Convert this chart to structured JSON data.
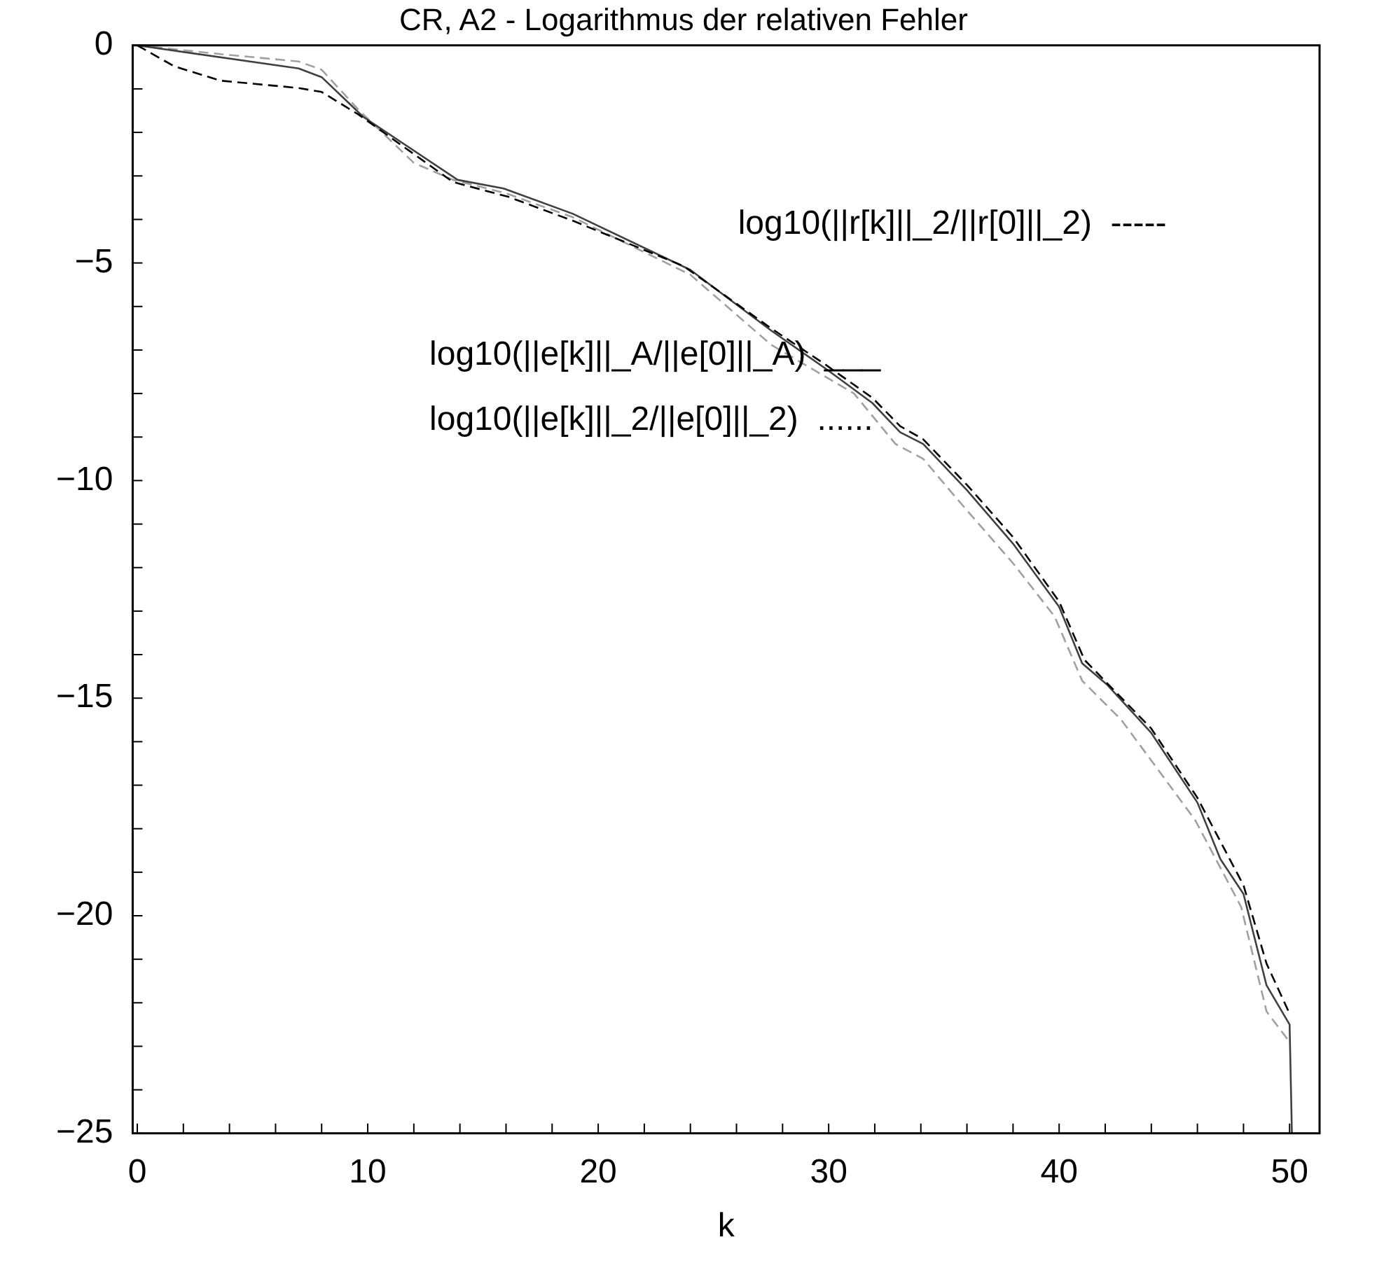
{
  "chart_data": {
    "type": "line",
    "title": "CR, A2 - Logarithmus der relativen Fehler",
    "xlabel": "k",
    "annotations": [
      "log10(||r[k]||_2/||r[0]||_2)  -----",
      "log10(||e[k]||_A/||e[0]||_A)  ___",
      "log10(||e[k]||_2/||e[0]||_2)  ......"
    ],
    "series": [
      {
        "color": "#000000",
        "line_style": "dashed",
        "x": [
          0,
          1.6,
          3.6,
          7,
          8,
          9.6,
          13.7,
          16.1,
          18.9,
          23.7,
          27.5,
          29.9,
          31.9,
          33.1,
          34.1,
          36,
          38,
          40,
          41.1,
          44,
          46,
          48,
          49,
          50
        ],
        "values": [
          0,
          -0.48,
          -0.81,
          -0.98,
          -1.07,
          -1.59,
          -3.14,
          -3.48,
          -4.03,
          -5.07,
          -6.5,
          -7.35,
          -8.1,
          -8.75,
          -9.05,
          -10.1,
          -11.3,
          -12.78,
          -14.12,
          -15.7,
          -17.29,
          -19.3,
          -21.1,
          -22.25
        ]
      },
      {
        "color": "#404040",
        "line_style": "solid",
        "x": [
          0,
          7,
          8,
          9.8,
          13.9,
          15.9,
          18.9,
          24,
          27.5,
          29.9,
          31.9,
          33.1,
          34.1,
          36,
          38,
          40,
          41,
          42.1,
          44,
          46,
          47,
          48,
          49,
          50,
          50.1
        ],
        "values": [
          0,
          -0.53,
          -0.73,
          -1.64,
          -3.09,
          -3.29,
          -3.87,
          -5.16,
          -6.55,
          -7.44,
          -8.22,
          -8.89,
          -9.16,
          -10.22,
          -11.45,
          -12.9,
          -14.2,
          -14.7,
          -15.8,
          -17.4,
          -18.7,
          -19.5,
          -21.6,
          -22.5,
          -25
        ]
      },
      {
        "color": "#a0a0a0",
        "line_style": "dashed",
        "x": [
          0,
          3.6,
          7,
          8,
          9.6,
          12,
          13.7,
          16,
          18.9,
          24,
          27.5,
          31.1,
          32.9,
          34.1,
          35.6,
          38,
          39.8,
          41,
          42.7,
          45.9,
          47.9,
          49,
          50
        ],
        "values": [
          0,
          -0.2,
          -0.37,
          -0.56,
          -1.48,
          -2.7,
          -3.09,
          -3.4,
          -3.95,
          -5.27,
          -6.88,
          -8,
          -9.16,
          -9.5,
          -10.44,
          -11.9,
          -13.12,
          -14.6,
          -15.5,
          -17.8,
          -19.8,
          -22.2,
          -22.9
        ]
      }
    ],
    "xlim": [
      -0.2,
      51.3
    ],
    "ylim": [
      -25,
      0
    ],
    "xticks": [
      0,
      {
        "value": 2,
        "label": null
      },
      {
        "value": 4,
        "label": null
      },
      {
        "value": 6,
        "label": null
      },
      {
        "value": 8,
        "label": null
      },
      10,
      {
        "value": 12,
        "label": null
      },
      {
        "value": 14,
        "label": null
      },
      {
        "value": 16,
        "label": null
      },
      {
        "value": 18,
        "label": null
      },
      20,
      {
        "value": 22,
        "label": null
      },
      {
        "value": 24,
        "label": null
      },
      {
        "value": 26,
        "label": null
      },
      {
        "value": 28,
        "label": null
      },
      30,
      {
        "value": 32,
        "label": null
      },
      {
        "value": 34,
        "label": null
      },
      {
        "value": 36,
        "label": null
      },
      {
        "value": 38,
        "label": null
      },
      40,
      {
        "value": 42,
        "label": null
      },
      {
        "value": 44,
        "label": null
      },
      {
        "value": 46,
        "label": null
      },
      {
        "value": 48,
        "label": null
      },
      50
    ],
    "yticks": [
      {
        "value": -25,
        "label": "−25"
      },
      {
        "value": -24,
        "label": null
      },
      {
        "value": -23,
        "label": null
      },
      {
        "value": -22,
        "label": null
      },
      {
        "value": -21,
        "label": null
      },
      {
        "value": -20,
        "label": "−20"
      },
      {
        "value": -19,
        "label": null
      },
      {
        "value": -18,
        "label": null
      },
      {
        "value": -17,
        "label": null
      },
      {
        "value": -16,
        "label": null
      },
      {
        "value": -15,
        "label": "−15"
      },
      {
        "value": -14,
        "label": null
      },
      {
        "value": -13,
        "label": null
      },
      {
        "value": -12,
        "label": null
      },
      {
        "value": -11,
        "label": null
      },
      {
        "value": -10,
        "label": "−10"
      },
      {
        "value": -9,
        "label": null
      },
      {
        "value": -8,
        "label": null
      },
      {
        "value": -7,
        "label": null
      },
      {
        "value": -6,
        "label": null
      },
      {
        "value": -5,
        "label": "−5"
      },
      {
        "value": -4,
        "label": null
      },
      {
        "value": -3,
        "label": null
      },
      {
        "value": -2,
        "label": null
      },
      {
        "value": -1,
        "label": null
      },
      0
    ]
  }
}
